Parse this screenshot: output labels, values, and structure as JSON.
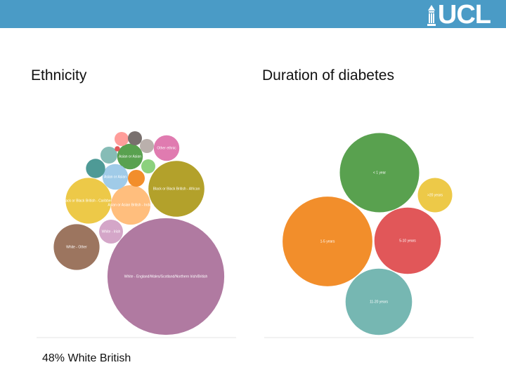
{
  "header": {
    "logo_text": "UCL",
    "logo_icon": "portico-icon"
  },
  "caption": "48% White British",
  "chart_data": [
    {
      "type": "bubble",
      "title": "Ethnicity",
      "bubbles": [
        {
          "label": "White - England/Wales/Scotland/Northern Irish/British",
          "size": 48,
          "color": "#b07aa1"
        },
        {
          "label": "Black or Black British - African",
          "size": 11,
          "color": "#b3a12b"
        },
        {
          "label": "Black or Black British - Caribbean",
          "size": 7.4,
          "color": "#edc948"
        },
        {
          "label": "White - Other",
          "size": 7.4,
          "color": "#9c755f"
        },
        {
          "label": "Asian or Asian British - Indian",
          "size": 5.5,
          "color": "#ffbe7d"
        },
        {
          "label": "White - Irish",
          "size": 2,
          "color": "#d4a6c8"
        },
        {
          "label": "Asian or Asian",
          "size": 2.3,
          "color": "#59a14f"
        },
        {
          "label": "Asian or Asian",
          "size": 2.3,
          "color": "#a0cbe8"
        },
        {
          "label": "Other ethnic",
          "size": 2.3,
          "color": "#e07bb0"
        },
        {
          "label": "",
          "size": 1.3,
          "color": "#4e9a96"
        },
        {
          "label": "",
          "size": 1.0,
          "color": "#f28e2b"
        },
        {
          "label": "",
          "size": 1.0,
          "color": "#86bcb6"
        },
        {
          "label": "",
          "size": 0.7,
          "color": "#8cd17d"
        },
        {
          "label": "",
          "size": 0.7,
          "color": "#bab0ac"
        },
        {
          "label": "",
          "size": 0.7,
          "color": "#ff9d9a"
        },
        {
          "label": "",
          "size": 0.7,
          "color": "#79706e"
        },
        {
          "label": "",
          "size": 0.1,
          "color": "#e15759"
        }
      ]
    },
    {
      "type": "bubble",
      "title": "Duration of diabetes",
      "bubbles": [
        {
          "label": "< 1 year",
          "size": 25,
          "color": "#59a14f"
        },
        {
          "label": "1-5 years",
          "size": 32,
          "color": "#f28e2b"
        },
        {
          "label": "5-10 years",
          "size": 17.5,
          "color": "#e15759"
        },
        {
          "label": "11-20 years",
          "size": 17.5,
          "color": "#76b7b2"
        },
        {
          "label": ">20 years",
          "size": 4.7,
          "color": "#edc948"
        }
      ]
    }
  ]
}
